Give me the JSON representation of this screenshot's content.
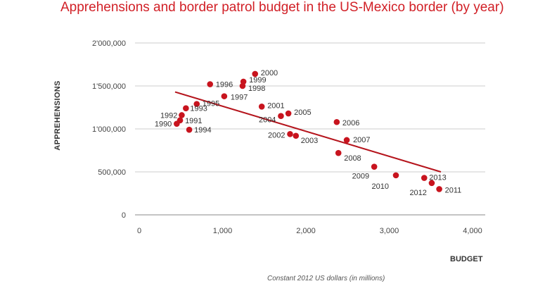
{
  "chart_data": {
    "type": "scatter",
    "title": "Apprehensions and border patrol budget in the US-Mexico border (by year)",
    "xlabel": "BUDGET",
    "ylabel": "APPREHENSIONS",
    "note": "Constant 2012 US dollars (in millions)",
    "xlim": [
      0,
      4000
    ],
    "ylim": [
      0,
      2000000
    ],
    "x_ticks": [
      0,
      1000,
      2000,
      3000,
      4000
    ],
    "x_tick_labels": [
      "0",
      "1,000",
      "2,000",
      "3,000",
      "4,000"
    ],
    "y_ticks": [
      0,
      500000,
      1000000,
      1500000,
      2000000
    ],
    "y_tick_labels": [
      "0",
      "500,000",
      "1'000,000",
      "1'500,000",
      "2'000,000"
    ],
    "grid": "horizontal",
    "colors": {
      "point": "#c8141e",
      "trend": "#b5141c",
      "title": "#d11f26",
      "grid": "#cccccc"
    },
    "points": [
      {
        "label": "1990",
        "x": 450,
        "y": 1060000
      },
      {
        "label": "1991",
        "x": 490,
        "y": 1100000
      },
      {
        "label": "1992",
        "x": 510,
        "y": 1160000
      },
      {
        "label": "1993",
        "x": 560,
        "y": 1240000
      },
      {
        "label": "1994",
        "x": 600,
        "y": 990000
      },
      {
        "label": "1995",
        "x": 690,
        "y": 1290000
      },
      {
        "label": "1996",
        "x": 850,
        "y": 1520000
      },
      {
        "label": "1997",
        "x": 1020,
        "y": 1380000
      },
      {
        "label": "1998",
        "x": 1240,
        "y": 1500000
      },
      {
        "label": "1999",
        "x": 1250,
        "y": 1550000
      },
      {
        "label": "2000",
        "x": 1390,
        "y": 1640000
      },
      {
        "label": "2001",
        "x": 1470,
        "y": 1260000
      },
      {
        "label": "2002",
        "x": 1810,
        "y": 940000
      },
      {
        "label": "2003",
        "x": 1880,
        "y": 920000
      },
      {
        "label": "2004",
        "x": 1700,
        "y": 1150000
      },
      {
        "label": "2005",
        "x": 1790,
        "y": 1180000
      },
      {
        "label": "2006",
        "x": 2370,
        "y": 1080000
      },
      {
        "label": "2007",
        "x": 2490,
        "y": 870000
      },
      {
        "label": "2008",
        "x": 2390,
        "y": 720000
      },
      {
        "label": "2009",
        "x": 2820,
        "y": 560000
      },
      {
        "label": "2010",
        "x": 3080,
        "y": 460000
      },
      {
        "label": "2011",
        "x": 3600,
        "y": 300000
      },
      {
        "label": "2012",
        "x": 3510,
        "y": 370000
      },
      {
        "label": "2013",
        "x": 3420,
        "y": 430000
      }
    ],
    "trendline": {
      "x": [
        430,
        3620
      ],
      "y": [
        1430000,
        500000
      ]
    }
  }
}
